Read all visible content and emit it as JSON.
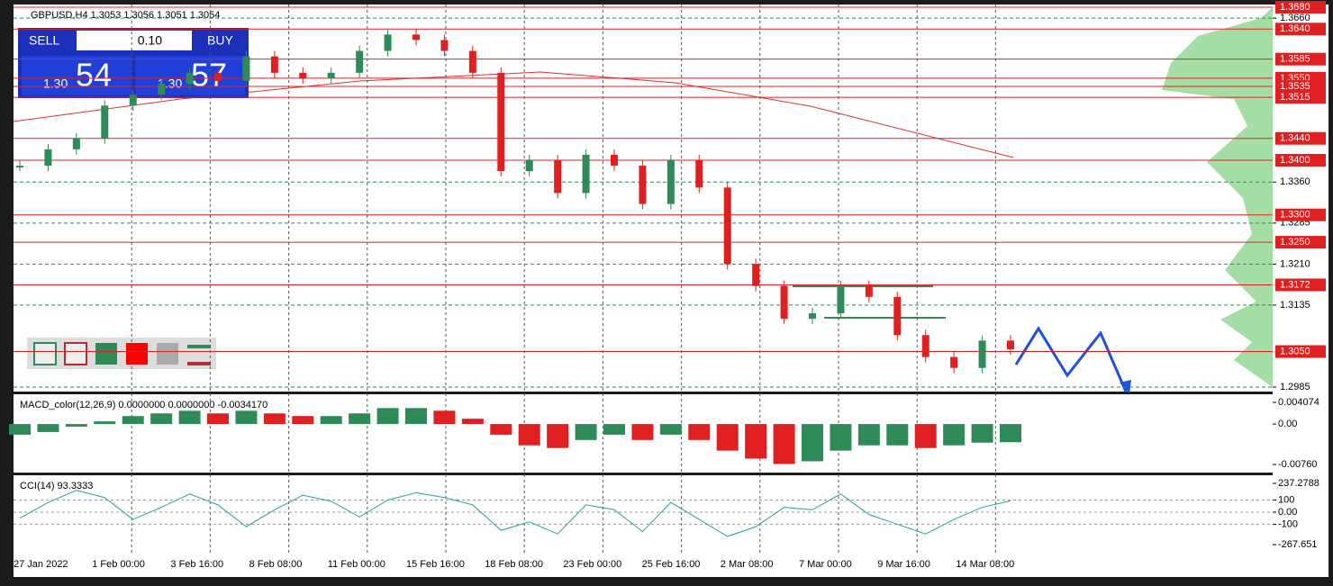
{
  "header": {
    "symbol": "GBPUSD,H4  1.3053 1.3056 1.3051 1.3054"
  },
  "trade_panel": {
    "sell": "SELL",
    "lot": "0.10",
    "buy": "BUY",
    "sell_big": "1.30",
    "sell_pips": "54",
    "buy_big": "1.30",
    "buy_pips": "57"
  },
  "price_axis": {
    "max": 1.368,
    "min": 1.2985,
    "levels": [
      {
        "value": 1.368,
        "label": "1.3680"
      },
      {
        "value": 1.364,
        "label": "1.3640"
      },
      {
        "value": 1.3585,
        "label": "1.3585"
      },
      {
        "value": 1.355,
        "label": "1.3550"
      },
      {
        "value": 1.3535,
        "label": "1.3535"
      },
      {
        "value": 1.3515,
        "label": "1.3515"
      },
      {
        "value": 1.344,
        "label": "1.3440"
      },
      {
        "value": 1.34,
        "label": "1.3400"
      },
      {
        "value": 1.33,
        "label": "1.3300"
      },
      {
        "value": 1.325,
        "label": "1.3250"
      },
      {
        "value": 1.3172,
        "label": "1.3172"
      },
      {
        "value": 1.305,
        "label": "1.3050"
      }
    ],
    "ticks": [
      {
        "value": 1.366,
        "label": "1.3660"
      },
      {
        "value": 1.336,
        "label": "1.3360"
      },
      {
        "value": 1.3285,
        "label": "1.3285"
      },
      {
        "value": 1.321,
        "label": "1.3210"
      },
      {
        "value": 1.3135,
        "label": "1.3135"
      },
      {
        "value": 1.2985,
        "label": "1.2985"
      }
    ]
  },
  "price": {
    "closes": [
      1.339,
      1.342,
      1.344,
      1.35,
      1.352,
      1.354,
      1.356,
      1.3545,
      1.359,
      1.356,
      1.355,
      1.356,
      1.36,
      1.363,
      1.362,
      1.36,
      1.356,
      1.338,
      1.34,
      1.334,
      1.341,
      1.339,
      1.332,
      1.34,
      1.335,
      1.321,
      1.317,
      1.311,
      1.312,
      1.317,
      1.315,
      1.308,
      1.304,
      1.302,
      1.307,
      1.3054
    ]
  },
  "dates": [
    "27 Jan 2022",
    "1 Feb 00:00",
    "3 Feb 16:00",
    "8 Feb 08:00",
    "11 Feb 00:00",
    "15 Feb 16:00",
    "18 Feb 08:00",
    "23 Feb 00:00",
    "25 Feb 16:00",
    "2 Mar 08:00",
    "7 Mar 00:00",
    "9 Mar 16:00",
    "14 Mar 08:00"
  ],
  "macd": {
    "label": "MACD_color(12,26,9) 0.0000000 0.0000000 -0.0034170",
    "ticks": [
      {
        "value": 0.004074,
        "label": "0.004074"
      },
      {
        "value": 0,
        "label": "0.00"
      },
      {
        "value": -0.0076,
        "label": "-0.00760"
      }
    ],
    "values": [
      -0.002,
      -0.0015,
      -0.0005,
      0.0005,
      0.0015,
      0.002,
      0.0025,
      0.002,
      0.0025,
      0.002,
      0.0015,
      0.0015,
      0.002,
      0.003,
      0.003,
      0.0025,
      0.001,
      -0.002,
      -0.004,
      -0.0045,
      -0.003,
      -0.002,
      -0.003,
      -0.002,
      -0.003,
      -0.005,
      -0.0065,
      -0.0075,
      -0.007,
      -0.005,
      -0.004,
      -0.004,
      -0.0045,
      -0.004,
      -0.0035,
      -0.003417
    ]
  },
  "cci": {
    "label": "CCI(14) 93.3333",
    "ticks": [
      {
        "value": 237.2788,
        "label": "237.2788"
      },
      {
        "value": 100,
        "label": "100"
      },
      {
        "value": 0,
        "label": "0.00"
      },
      {
        "value": -100,
        "label": "-100"
      },
      {
        "value": -267.651,
        "label": "-267.651"
      }
    ],
    "values": [
      -50,
      80,
      180,
      120,
      -60,
      40,
      150,
      60,
      -120,
      20,
      140,
      90,
      -40,
      100,
      160,
      120,
      60,
      -150,
      -80,
      -180,
      60,
      20,
      -160,
      80,
      -60,
      -200,
      -120,
      40,
      20,
      150,
      -20,
      -100,
      -180,
      -60,
      40,
      93.3333
    ]
  }
}
